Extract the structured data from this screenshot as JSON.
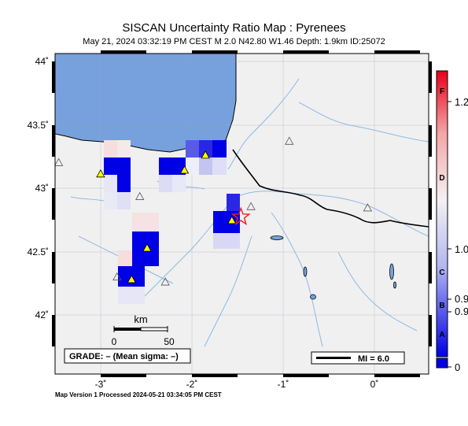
{
  "header": {
    "title": "SISCAN Uncertainty Ratio Map : Pyrenees",
    "subtitle": "May 21, 2024 03:32:19 PM CEST   M 2.0   N42.80 W1.46   Depth: 1.9km   ID:25072"
  },
  "footer": {
    "text": "Map Version 1 Processed 2024-05-21 03:34:05 PM CEST"
  },
  "map": {
    "lon_range": [
      -3.5,
      0.6
    ],
    "lat_range": [
      41.55,
      44.1
    ],
    "lat_ticks": [
      "44˚",
      "43.5˚",
      "43˚",
      "42.5˚",
      "42˚"
    ],
    "lon_ticks": [
      "-3˚",
      "-2˚",
      "-1˚",
      "0˚"
    ],
    "epicenter": {
      "lat": 42.8,
      "lon": -1.46
    },
    "stations_active": [
      {
        "lat": 43.29,
        "lon": -1.85
      },
      {
        "lat": 43.17,
        "lon": -2.08
      },
      {
        "lat": 43.14,
        "lon": -3.0
      },
      {
        "lat": 42.77,
        "lon": -1.56
      },
      {
        "lat": 42.55,
        "lon": -2.49
      },
      {
        "lat": 42.3,
        "lon": -2.66
      }
    ],
    "stations_inactive": [
      {
        "lat": 43.23,
        "lon": -3.46
      },
      {
        "lat": 42.96,
        "lon": -2.57
      },
      {
        "lat": 42.88,
        "lon": -1.35
      },
      {
        "lat": 43.4,
        "lon": -0.93
      },
      {
        "lat": 42.32,
        "lon": -2.82
      },
      {
        "lat": 42.28,
        "lon": -2.29
      },
      {
        "lat": 42.87,
        "lon": -0.07
      }
    ],
    "colors": {
      "sea": "#76a1dc",
      "land": "#f0f0f0",
      "river": "#8fb8e2",
      "border": "#000000",
      "epicenter": "#e8221c",
      "station": "#ffff00"
    }
  },
  "scale_bar": {
    "unit": "km",
    "label_start": "0",
    "label_end": "50"
  },
  "grade_box": {
    "text": "GRADE: – (Mean sigma: –)"
  },
  "mi_box": {
    "text": "MI = 6.0"
  },
  "colorbar": {
    "letters": [
      "F",
      "D",
      "C",
      "B",
      "A"
    ],
    "numbers": [
      "1.2",
      "1.0",
      "0.9",
      "0.9",
      "0"
    ]
  }
}
